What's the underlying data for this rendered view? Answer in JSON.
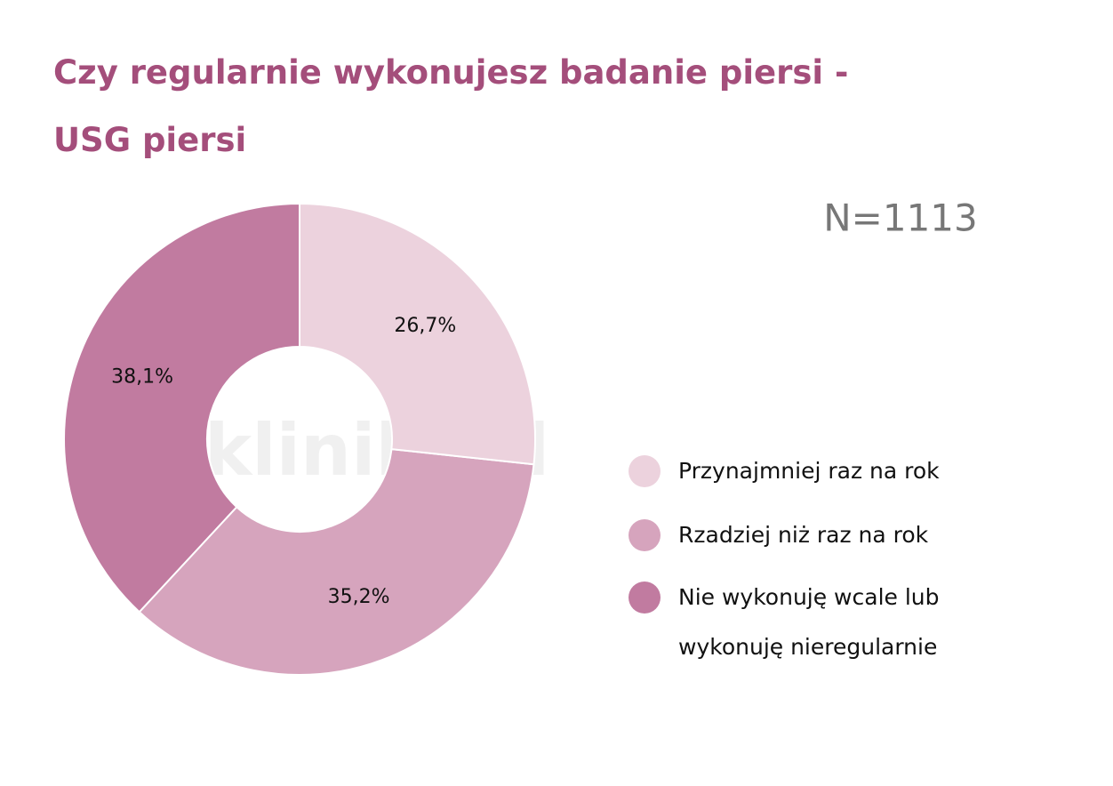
{
  "chart_data": {
    "type": "donut",
    "title": "Czy regularnie wykonujesz badanie piersi - USG piersi",
    "annotation": "N=1113",
    "watermark": "kliniki.pl",
    "categories": [
      "Przynajmniej raz na rok",
      "Rzadziej niż raz na rok",
      "Nie wykonuję wcale lub wykonuję nieregularnie"
    ],
    "values": [
      26.7,
      35.2,
      38.1
    ],
    "value_labels": [
      "26,7%",
      "35,2%",
      "38,1%"
    ],
    "colors": [
      "#ecd2dd",
      "#d6a4bd",
      "#c17ba0"
    ],
    "legend": "right"
  }
}
